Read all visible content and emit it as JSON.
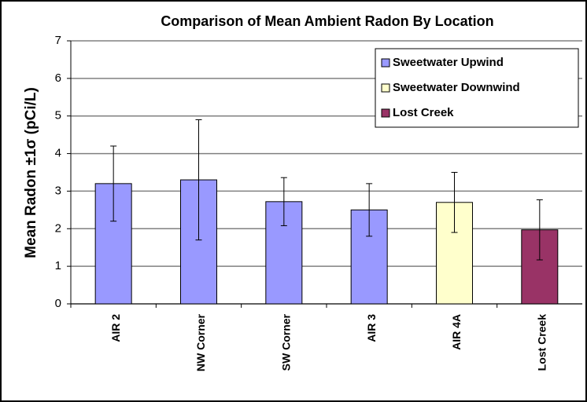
{
  "chart_data": {
    "type": "bar",
    "title": "Comparison of Mean Ambient Radon By Location",
    "y_label": "Mean Radon  ±1σ (pCi/L)",
    "categories": [
      "AIR 2",
      "NW Corner",
      "SW Corner",
      "AIR 3",
      "AIR 4A",
      "Lost Creek"
    ],
    "series": [
      {
        "name": "Sweetwater Upwind",
        "color": "#9999ff",
        "values": [
          3.2,
          3.3,
          2.72,
          2.5,
          null,
          null
        ],
        "errors": [
          1.0,
          1.6,
          0.64,
          0.7,
          null,
          null
        ]
      },
      {
        "name": "Sweetwater Downwind",
        "color": "#ffffcc",
        "values": [
          null,
          null,
          null,
          null,
          2.7,
          null
        ],
        "errors": [
          null,
          null,
          null,
          null,
          0.8,
          null
        ]
      },
      {
        "name": "Lost Creek",
        "color": "#993366",
        "values": [
          null,
          null,
          null,
          null,
          null,
          1.97
        ],
        "errors": [
          null,
          null,
          null,
          null,
          null,
          0.8
        ]
      }
    ],
    "ylim": [
      0,
      7
    ],
    "yticks": [
      0,
      1,
      2,
      3,
      4,
      5,
      6,
      7
    ],
    "grid": true,
    "legend": "upper right"
  }
}
